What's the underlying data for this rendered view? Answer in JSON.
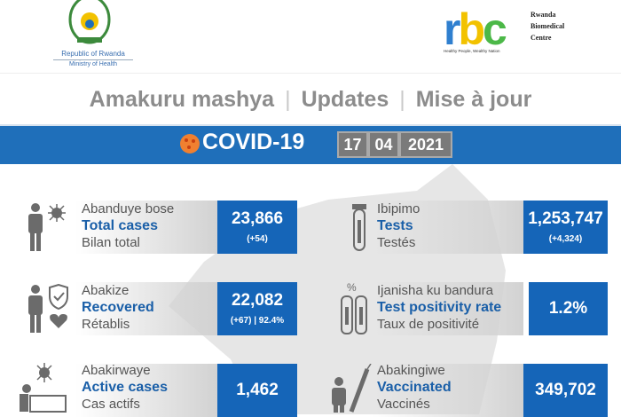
{
  "header": {
    "gov_line1": "Republic of Rwanda",
    "gov_line2": "Ministry of Health",
    "rbc_logo": "rbc",
    "rbc_name": [
      "Rwanda",
      "Biomedical",
      "Centre"
    ],
    "rbc_tagline": "Healthy People, Wealthy Nation"
  },
  "title": {
    "kinyarwanda": "Amakuru mashya",
    "english": "Updates",
    "french": "Mise à jour",
    "separator": "|"
  },
  "banner": {
    "label": "COVID-19",
    "date": {
      "day": "17",
      "month": "04",
      "year": "2021"
    }
  },
  "colors": {
    "blue": "#1565b8",
    "label_blue": "#1a5fa8",
    "gray": "#8c8c8c",
    "virus": "#f08030"
  },
  "stats": [
    {
      "rw": "Abanduye bose",
      "en": "Total cases",
      "fr": "Bilan total",
      "value": "23,866",
      "sub": "(+54)",
      "icon": "person-virus-icon"
    },
    {
      "rw": "Ibipimo",
      "en": "Tests",
      "fr": "Testés",
      "value": "1,253,747",
      "sub": "(+4,324)",
      "icon": "test-tube-icon"
    },
    {
      "rw": "Abakize",
      "en": "Recovered",
      "fr": "Rétablis",
      "value": "22,082",
      "sub": "(+67) | 92.4%",
      "icon": "person-shield-heart-icon"
    },
    {
      "rw": "Ijanisha ku bandura",
      "en": "Test positivity rate",
      "fr": "Taux de positivité",
      "value": "1.2%",
      "sub": "",
      "icon": "percent-test-tubes-icon"
    },
    {
      "rw": "Abakirwaye",
      "en": "Active cases",
      "fr": "Cas actifs",
      "value": "1,462",
      "sub": "",
      "icon": "patient-bed-icon"
    },
    {
      "rw": "Abakingiwe",
      "en": "Vaccinated",
      "fr": "Vaccinés",
      "value": "349,702",
      "sub": "",
      "icon": "person-syringe-icon"
    }
  ]
}
